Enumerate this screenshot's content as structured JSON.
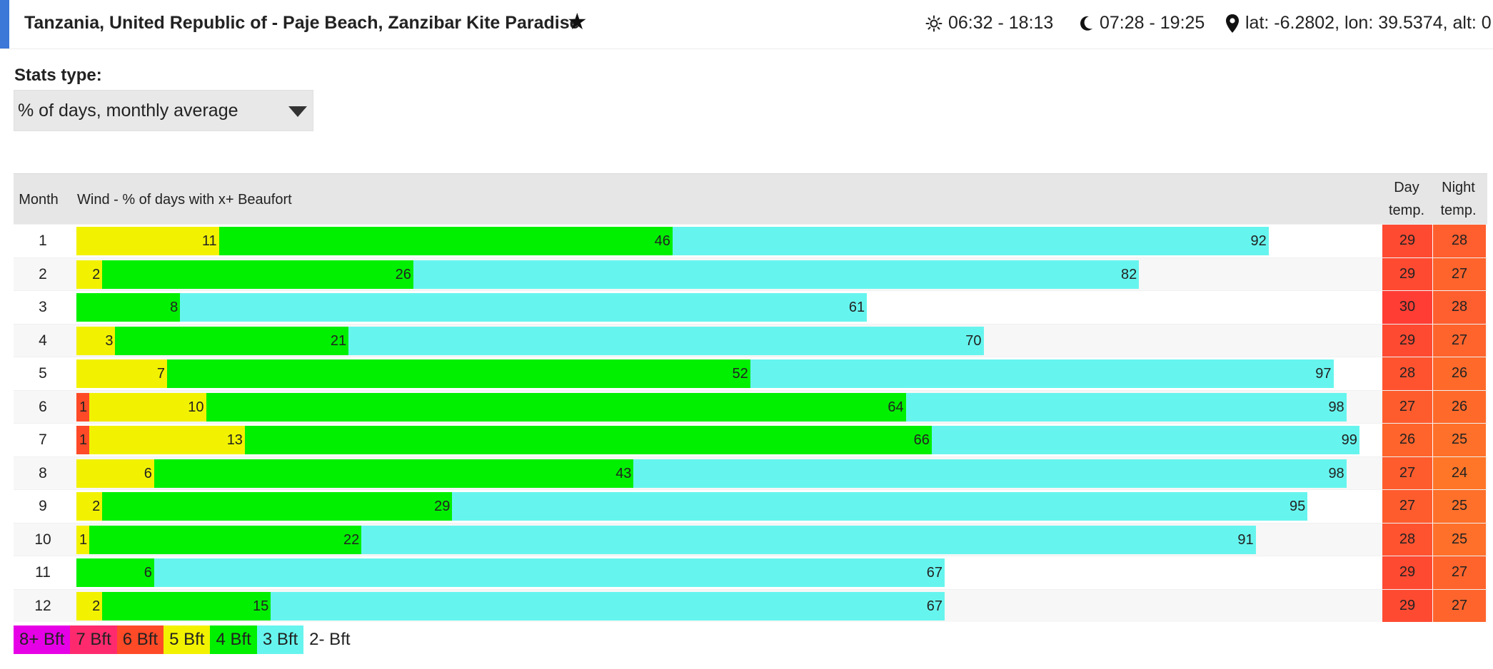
{
  "header": {
    "title": "Tanzania, United Republic of - Paje Beach, Zanzibar Kite Paradise",
    "sun": "06:32 - 18:13",
    "moon": "07:28 - 19:25",
    "location": "lat: -6.2802, lon: 39.5374, alt: 0",
    "accent_color": "#3b78d8"
  },
  "stats": {
    "label": "Stats type:",
    "selected": "% of days, monthly average"
  },
  "table": {
    "headers": {
      "month": "Month",
      "wind": "Wind - % of days with x+ Beaufort",
      "day_temp_1": "Day",
      "day_temp_2": "temp.",
      "night_temp_1": "Night",
      "night_temp_2": "temp."
    },
    "rows": [
      {
        "month": "1",
        "bft6": 0,
        "bft5": 11,
        "bft4": 46,
        "bft3": 92,
        "day": "29",
        "night": "28",
        "day_color": "#ff4a32",
        "night_color": "#ff5e2e"
      },
      {
        "month": "2",
        "bft6": 0,
        "bft5": 2,
        "bft4": 26,
        "bft3": 82,
        "day": "29",
        "night": "27",
        "day_color": "#ff4a32",
        "night_color": "#ff642c"
      },
      {
        "month": "3",
        "bft6": 0,
        "bft5": 0,
        "bft4": 8,
        "bft3": 61,
        "day": "30",
        "night": "28",
        "day_color": "#ff3d34",
        "night_color": "#ff5e2e"
      },
      {
        "month": "4",
        "bft6": 0,
        "bft5": 3,
        "bft4": 21,
        "bft3": 70,
        "day": "29",
        "night": "27",
        "day_color": "#ff4a32",
        "night_color": "#ff642c"
      },
      {
        "month": "5",
        "bft6": 0,
        "bft5": 7,
        "bft4": 52,
        "bft3": 97,
        "day": "28",
        "night": "26",
        "day_color": "#ff5330",
        "night_color": "#ff6a2a"
      },
      {
        "month": "6",
        "bft6": 1,
        "bft5": 10,
        "bft4": 64,
        "bft3": 98,
        "day": "27",
        "night": "26",
        "day_color": "#ff5c2e",
        "night_color": "#ff6a2a"
      },
      {
        "month": "7",
        "bft6": 1,
        "bft5": 13,
        "bft4": 66,
        "bft3": 99,
        "day": "26",
        "night": "25",
        "day_color": "#ff642c",
        "night_color": "#ff702a"
      },
      {
        "month": "8",
        "bft6": 0,
        "bft5": 6,
        "bft4": 43,
        "bft3": 98,
        "day": "27",
        "night": "24",
        "day_color": "#ff5c2e",
        "night_color": "#ff7628"
      },
      {
        "month": "9",
        "bft6": 0,
        "bft5": 2,
        "bft4": 29,
        "bft3": 95,
        "day": "27",
        "night": "25",
        "day_color": "#ff5c2e",
        "night_color": "#ff702a"
      },
      {
        "month": "10",
        "bft6": 0,
        "bft5": 1,
        "bft4": 22,
        "bft3": 91,
        "day": "28",
        "night": "25",
        "day_color": "#ff5330",
        "night_color": "#ff702a"
      },
      {
        "month": "11",
        "bft6": 0,
        "bft5": 0,
        "bft4": 6,
        "bft3": 67,
        "day": "29",
        "night": "27",
        "day_color": "#ff4a32",
        "night_color": "#ff642c"
      },
      {
        "month": "12",
        "bft6": 0,
        "bft5": 2,
        "bft4": 15,
        "bft3": 67,
        "day": "29",
        "night": "27",
        "day_color": "#ff4a32",
        "night_color": "#ff642c"
      }
    ]
  },
  "colors": {
    "bft6": "#ff4a28",
    "bft5": "#f2f200",
    "bft4": "#00f000",
    "bft3": "#66f5ee"
  },
  "legend": [
    {
      "label": "8+ Bft",
      "color": "#e600e6"
    },
    {
      "label": "7 Bft",
      "color": "#ff2a6e"
    },
    {
      "label": "6 Bft",
      "color": "#ff4a28"
    },
    {
      "label": "5 Bft",
      "color": "#f2f200"
    },
    {
      "label": "4 Bft",
      "color": "#00f000"
    },
    {
      "label": "3 Bft",
      "color": "#66f5ee"
    },
    {
      "label": "2- Bft",
      "color": "#ffffff"
    }
  ]
}
